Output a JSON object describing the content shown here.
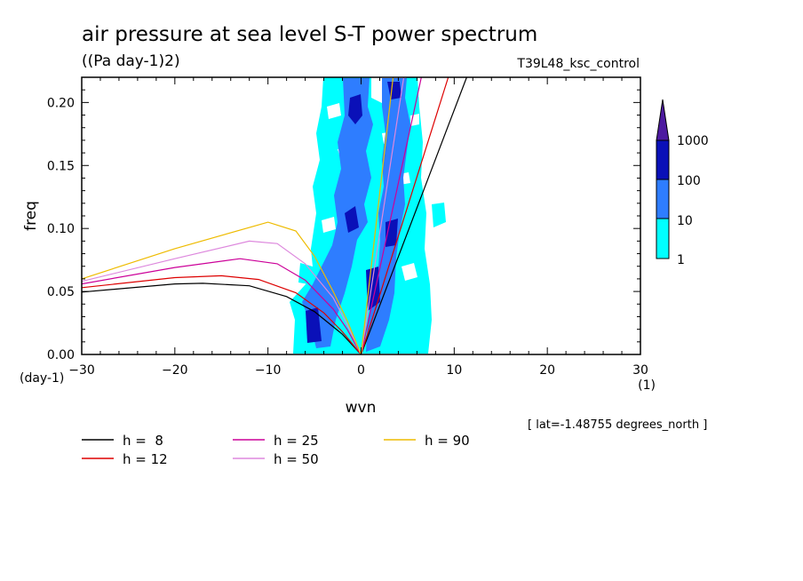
{
  "chart_data": {
    "type": "contour",
    "title": "air pressure at sea level S-T power spectrum",
    "units_label": "((Pa day-1)2)",
    "run_label": "T39L48_ksc_control",
    "xlabel": "wvn",
    "ylabel": "freq",
    "x_unit": "(1)",
    "y_unit": "(day-1)",
    "xlim": [
      -30,
      30
    ],
    "ylim": [
      0,
      0.22
    ],
    "x_ticks": [
      -30,
      -20,
      -10,
      0,
      10,
      20,
      30
    ],
    "x_tick_labels": [
      "−30",
      "−20",
      "−10",
      "0",
      "10",
      "20",
      "30"
    ],
    "y_ticks": [
      0.0,
      0.05,
      0.1,
      0.15,
      0.2
    ],
    "y_tick_labels": [
      "0.00",
      "0.05",
      "0.10",
      "0.15",
      "0.20"
    ],
    "colorbar": {
      "levels": [
        "1",
        "10",
        "100",
        "1000"
      ],
      "colors": [
        "#00ffff",
        "#2e7dff",
        "#0a10b8",
        "#4d1aa0"
      ]
    },
    "lat_note": "[ lat=-1.48755 degrees_north ]",
    "dispersion_curves": [
      {
        "label": "h =  8",
        "color": "#000000",
        "kelvin_slope": 0.0194,
        "rossby": [
          [
            -30,
            0.0495
          ],
          [
            -20,
            0.056
          ],
          [
            -17,
            0.0565
          ],
          [
            -12,
            0.0545
          ],
          [
            -8,
            0.046
          ],
          [
            -5,
            0.034
          ],
          [
            -2,
            0.016
          ],
          [
            0,
            0
          ]
        ]
      },
      {
        "label": "h = 12",
        "color": "#dd0000",
        "kelvin_slope": 0.0235,
        "rossby": [
          [
            -30,
            0.053
          ],
          [
            -20,
            0.061
          ],
          [
            -15,
            0.0625
          ],
          [
            -11,
            0.0595
          ],
          [
            -7,
            0.049
          ],
          [
            -4,
            0.033
          ],
          [
            -2,
            0.018
          ],
          [
            0,
            0
          ]
        ]
      },
      {
        "label": "h = 25",
        "color": "#cc0099",
        "kelvin_slope": 0.034,
        "rossby": [
          [
            -30,
            0.056
          ],
          [
            -20,
            0.069
          ],
          [
            -13,
            0.076
          ],
          [
            -9,
            0.072
          ],
          [
            -6,
            0.059
          ],
          [
            -3,
            0.036
          ],
          [
            -1.5,
            0.02
          ],
          [
            0,
            0
          ]
        ]
      },
      {
        "label": "h = 50",
        "color": "#dd88dd",
        "kelvin_slope": 0.048,
        "rossby": [
          [
            -30,
            0.058
          ],
          [
            -20,
            0.076
          ],
          [
            -12,
            0.09
          ],
          [
            -9,
            0.088
          ],
          [
            -6,
            0.072
          ],
          [
            -3,
            0.045
          ],
          [
            -1.5,
            0.024
          ],
          [
            0,
            0
          ]
        ]
      },
      {
        "label": "h = 90",
        "color": "#eebb00",
        "kelvin_slope": 0.064,
        "rossby": [
          [
            -30,
            0.06
          ],
          [
            -20,
            0.084
          ],
          [
            -10,
            0.105
          ],
          [
            -7,
            0.098
          ],
          [
            -5,
            0.078
          ],
          [
            -3,
            0.05
          ],
          [
            -1.5,
            0.027
          ],
          [
            0,
            0
          ]
        ]
      }
    ]
  }
}
